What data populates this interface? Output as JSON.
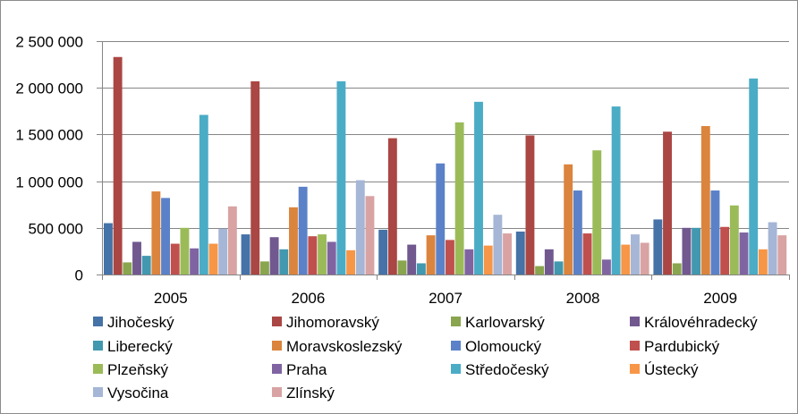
{
  "chart_data": {
    "type": "bar",
    "title": "",
    "xlabel": "",
    "ylabel": "",
    "ylim": [
      0,
      2500000
    ],
    "yticks": [
      {
        "value": 0,
        "label": "0"
      },
      {
        "value": 500000,
        "label": "500 000"
      },
      {
        "value": 1000000,
        "label": "1 000 000"
      },
      {
        "value": 1500000,
        "label": "1 500 000"
      },
      {
        "value": 2000000,
        "label": "2 000 000"
      },
      {
        "value": 2500000,
        "label": "2 500 000"
      }
    ],
    "grid": true,
    "legend_position": "bottom",
    "categories": [
      "2005",
      "2006",
      "2007",
      "2008",
      "2009"
    ],
    "series": [
      {
        "name": "Jihočeský",
        "color": "#4572A7",
        "values": [
          550000,
          430000,
          480000,
          460000,
          590000
        ]
      },
      {
        "name": "Jihomoravský",
        "color": "#AA4643",
        "values": [
          2330000,
          2070000,
          1460000,
          1490000,
          1530000
        ]
      },
      {
        "name": "Karlovarský",
        "color": "#89A54E",
        "values": [
          130000,
          140000,
          150000,
          90000,
          120000
        ]
      },
      {
        "name": "Královéhradecký",
        "color": "#71588F",
        "values": [
          350000,
          400000,
          320000,
          270000,
          500000
        ]
      },
      {
        "name": "Liberecký",
        "color": "#4198AF",
        "values": [
          200000,
          270000,
          120000,
          140000,
          500000
        ]
      },
      {
        "name": "Moravskoslezský",
        "color": "#DB843D",
        "values": [
          890000,
          720000,
          420000,
          1180000,
          1590000
        ]
      },
      {
        "name": "Olomoucký",
        "color": "#5B82C8",
        "values": [
          820000,
          940000,
          1190000,
          900000,
          900000
        ]
      },
      {
        "name": "Pardubický",
        "color": "#C0504D",
        "values": [
          330000,
          410000,
          370000,
          440000,
          510000
        ]
      },
      {
        "name": "Plzeňský",
        "color": "#9BBB59",
        "values": [
          500000,
          430000,
          1630000,
          1330000,
          740000
        ]
      },
      {
        "name": "Praha",
        "color": "#8064A2",
        "values": [
          280000,
          350000,
          270000,
          160000,
          450000
        ]
      },
      {
        "name": "Středočeský",
        "color": "#4BACC6",
        "values": [
          1710000,
          2070000,
          1850000,
          1800000,
          2100000
        ]
      },
      {
        "name": "Ústecký",
        "color": "#F79646",
        "values": [
          330000,
          260000,
          310000,
          320000,
          270000
        ]
      },
      {
        "name": "Vysočina",
        "color": "#A5B6D6",
        "values": [
          490000,
          1010000,
          640000,
          430000,
          560000
        ]
      },
      {
        "name": "Zlínský",
        "color": "#D9A3A3",
        "values": [
          730000,
          840000,
          440000,
          340000,
          420000
        ]
      }
    ]
  },
  "colors": {
    "gridline": "#868686",
    "axis": "#868686",
    "border": "#8c8c8c"
  }
}
